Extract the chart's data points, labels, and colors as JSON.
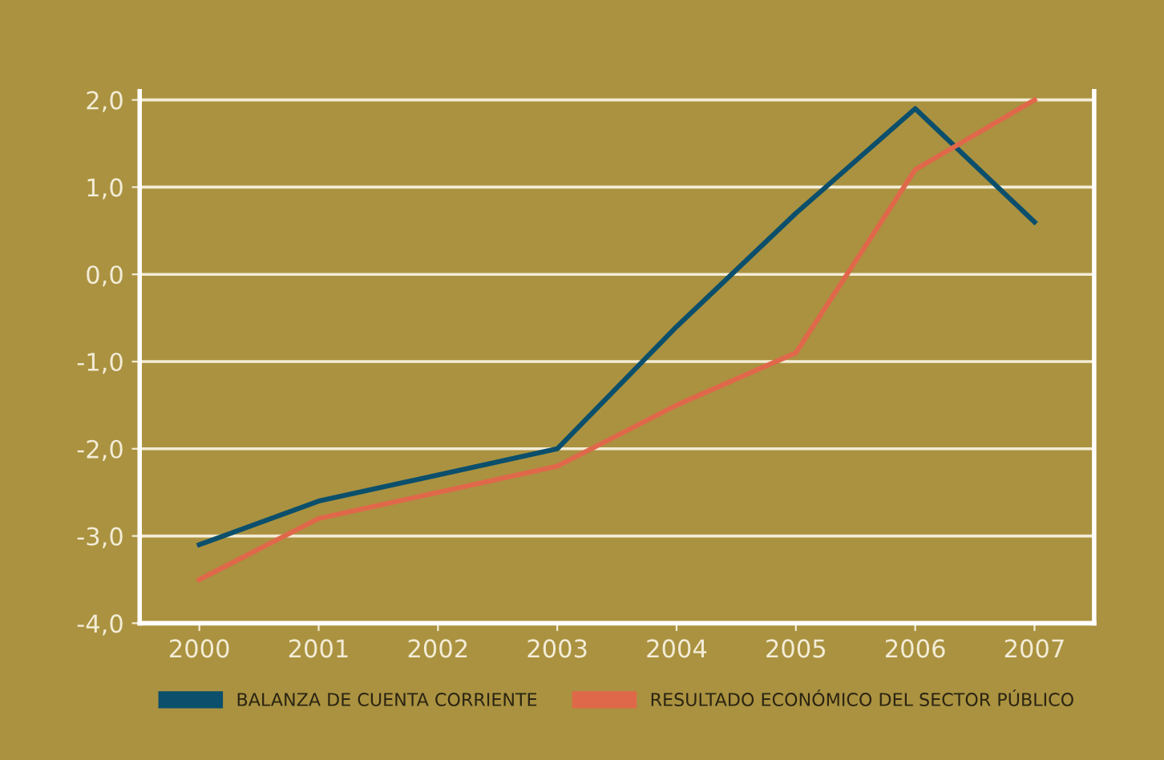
{
  "chart_data": {
    "type": "line",
    "categories": [
      "2000",
      "2001",
      "2002",
      "2003",
      "2004",
      "2005",
      "2006",
      "2007"
    ],
    "series": [
      {
        "name": "BALANZA DE CUENTA CORRIENTE",
        "color": "#0b4f6c",
        "values": [
          -3.1,
          -2.6,
          -2.3,
          -2.0,
          -0.6,
          0.7,
          1.9,
          0.6
        ]
      },
      {
        "name": "RESULTADO ECONÓMICO DEL SECTOR PÚBLICO",
        "color": "#e0684a",
        "values": [
          -3.5,
          -2.8,
          -2.5,
          -2.2,
          -1.5,
          -0.9,
          1.2,
          2.0
        ]
      }
    ],
    "ylim": [
      -4,
      2.1
    ],
    "yticks": [
      {
        "value": 2,
        "label": "2,0"
      },
      {
        "value": 1,
        "label": "1,0"
      },
      {
        "value": 0,
        "label": "0,0"
      },
      {
        "value": -1,
        "label": "-1,0"
      },
      {
        "value": -2,
        "label": "-2,0"
      },
      {
        "value": -3,
        "label": "-3,0"
      },
      {
        "value": -4,
        "label": "-4,0"
      }
    ],
    "grid": "y",
    "legend": "bottom",
    "marker": "none",
    "line_style": "solid"
  }
}
